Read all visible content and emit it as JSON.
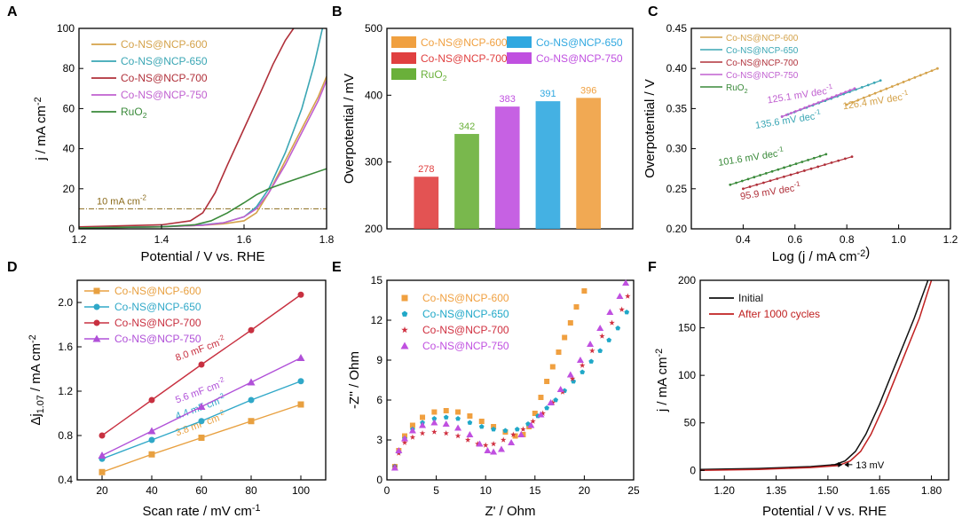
{
  "figure_labels": [
    "A",
    "B",
    "C",
    "D",
    "E",
    "F"
  ],
  "chart_data": [
    {
      "panel": "A",
      "type": "line",
      "xlabel": "Potential / V vs. RHE",
      "ylabel": "j / mA cm-2",
      "xlim": [
        1.2,
        1.8
      ],
      "ylim": [
        0,
        100
      ],
      "xticks": [
        1.2,
        1.4,
        1.6,
        1.8
      ],
      "yticks": [
        0,
        20,
        40,
        60,
        80,
        100
      ],
      "reference_line": {
        "y": 10,
        "label": "10 mA cm-2"
      },
      "series": [
        {
          "name": "Co-NS@NCP-600",
          "color": "#d4a24a",
          "x": [
            1.2,
            1.4,
            1.5,
            1.55,
            1.6,
            1.63,
            1.66,
            1.7,
            1.74,
            1.78,
            1.8
          ],
          "y": [
            0.5,
            1.0,
            1.8,
            2.5,
            4,
            8,
            18,
            34,
            50,
            66,
            76
          ]
        },
        {
          "name": "Co-NS@NCP-650",
          "color": "#3aa6b4",
          "x": [
            1.2,
            1.4,
            1.5,
            1.55,
            1.6,
            1.63,
            1.66,
            1.7,
            1.74,
            1.77,
            1.79
          ],
          "y": [
            0.5,
            1.1,
            2,
            3,
            6,
            11,
            20,
            38,
            60,
            82,
            100
          ]
        },
        {
          "name": "Co-NS@NCP-700",
          "color": "#b0303a",
          "x": [
            1.2,
            1.4,
            1.47,
            1.5,
            1.53,
            1.56,
            1.6,
            1.64,
            1.67,
            1.7,
            1.72
          ],
          "y": [
            1,
            2,
            4,
            8,
            18,
            32,
            50,
            68,
            82,
            94,
            100
          ]
        },
        {
          "name": "Co-NS@NCP-750",
          "color": "#c060d0",
          "x": [
            1.2,
            1.4,
            1.5,
            1.55,
            1.6,
            1.63,
            1.66,
            1.7,
            1.74,
            1.78,
            1.8
          ],
          "y": [
            0.5,
            1.0,
            1.8,
            3,
            6,
            10,
            18,
            32,
            48,
            64,
            74
          ]
        },
        {
          "name": "RuO2",
          "color": "#3a8a3a",
          "x": [
            1.2,
            1.4,
            1.48,
            1.52,
            1.56,
            1.6,
            1.63,
            1.66,
            1.7,
            1.75,
            1.8
          ],
          "y": [
            0.5,
            1,
            2,
            4,
            8,
            13,
            17,
            20,
            23,
            26.5,
            30
          ]
        }
      ]
    },
    {
      "panel": "B",
      "type": "bar",
      "ylabel": "Overpotential / mV",
      "ylim": [
        200,
        500
      ],
      "yticks": [
        200,
        300,
        400,
        500
      ],
      "categories": [
        "Co-NS@NCP-700",
        "RuO2",
        "Co-NS@NCP-750",
        "Co-NS@NCP-650",
        "Co-NS@NCP-600"
      ],
      "values": [
        278,
        342,
        383,
        391,
        396
      ],
      "value_labels": [
        "278",
        "342",
        "383",
        "391",
        "396"
      ],
      "colors": [
        "#e04040",
        "#6ab03a",
        "#c050e0",
        "#30a8e0",
        "#f0a040"
      ],
      "legend": [
        "Co-NS@NCP-600",
        "Co-NS@NCP-650",
        "Co-NS@NCP-700",
        "Co-NS@NCP-750",
        "RuO2"
      ]
    },
    {
      "panel": "C",
      "type": "scatter",
      "xlabel": "Log (j / mA cm-2)",
      "ylabel": "Overpotential / V",
      "xlim": [
        0.2,
        1.2
      ],
      "ylim": [
        0.2,
        0.45
      ],
      "xticks": [
        0.4,
        0.6,
        0.8,
        1.0,
        1.2
      ],
      "yticks": [
        0.2,
        0.25,
        0.3,
        0.35,
        0.4,
        0.45
      ],
      "series": [
        {
          "name": "Co-NS@NCP-600",
          "color": "#d4a24a",
          "x": [
            0.8,
            1.15
          ],
          "y": [
            0.355,
            0.4
          ],
          "slope_label": "126.4 mV dec-1"
        },
        {
          "name": "Co-NS@NCP-650",
          "color": "#3aa6b4",
          "x": [
            0.55,
            0.93
          ],
          "y": [
            0.34,
            0.385
          ],
          "slope_label": "135.6 mV dec-1"
        },
        {
          "name": "Co-NS@NCP-700",
          "color": "#b0303a",
          "x": [
            0.4,
            0.82
          ],
          "y": [
            0.25,
            0.29
          ],
          "slope_label": "95.9 mV dec-1"
        },
        {
          "name": "Co-NS@NCP-750",
          "color": "#c060d0",
          "x": [
            0.55,
            0.83
          ],
          "y": [
            0.34,
            0.375
          ],
          "slope_label": "125.1 mV dec-1"
        },
        {
          "name": "RuO2",
          "color": "#3a8a3a",
          "x": [
            0.35,
            0.72
          ],
          "y": [
            0.255,
            0.293
          ],
          "slope_label": "101.6 mV dec-1"
        }
      ]
    },
    {
      "panel": "D",
      "type": "line",
      "xlabel": "Scan rate / mV cm-1",
      "ylabel": "Δj1.07 / mA cm-2",
      "xlim": [
        10,
        110
      ],
      "ylim": [
        0.4,
        2.2
      ],
      "xticks": [
        20,
        40,
        60,
        80,
        100
      ],
      "yticks": [
        0.4,
        0.8,
        1.2,
        1.6,
        2.0
      ],
      "series": [
        {
          "name": "Co-NS@NCP-600",
          "color": "#e8a040",
          "marker": "square",
          "x": [
            20,
            40,
            60,
            80,
            100
          ],
          "y": [
            0.47,
            0.63,
            0.78,
            0.93,
            1.08
          ],
          "capacitance": "3.8 mF cm-2"
        },
        {
          "name": "Co-NS@NCP-650",
          "color": "#30a8c8",
          "marker": "circle",
          "x": [
            20,
            40,
            60,
            80,
            100
          ],
          "y": [
            0.59,
            0.76,
            0.93,
            1.12,
            1.29
          ],
          "capacitance": "4.4 mF cm-2"
        },
        {
          "name": "Co-NS@NCP-700",
          "color": "#c83040",
          "marker": "circle",
          "x": [
            20,
            40,
            60,
            80,
            100
          ],
          "y": [
            0.8,
            1.12,
            1.44,
            1.75,
            2.07
          ],
          "capacitance": "8.0 mF cm-2"
        },
        {
          "name": "Co-NS@NCP-750",
          "color": "#b050d8",
          "marker": "triangle",
          "x": [
            20,
            40,
            60,
            80,
            100
          ],
          "y": [
            0.62,
            0.84,
            1.06,
            1.28,
            1.5
          ],
          "capacitance": "5.6 mF cm-2"
        }
      ]
    },
    {
      "panel": "E",
      "type": "scatter",
      "xlabel": "Z' / Ohm",
      "ylabel": "-Z'' / Ohm",
      "xlim": [
        0,
        25
      ],
      "ylim": [
        0,
        15
      ],
      "xticks": [
        0,
        5,
        10,
        15,
        20,
        25
      ],
      "yticks": [
        0,
        3,
        6,
        9,
        12,
        15
      ],
      "series": [
        {
          "name": "Co-NS@NCP-600",
          "color": "#f0a040",
          "marker": "square",
          "x": [
            0.8,
            1.2,
            1.8,
            2.6,
            3.6,
            4.8,
            6,
            7.2,
            8.4,
            9.6,
            10.8,
            12,
            13,
            13.8,
            14.4,
            15,
            15.6,
            16.2,
            16.8,
            17.4,
            18,
            18.6,
            19.2,
            20
          ],
          "y": [
            1,
            2.2,
            3.3,
            4.1,
            4.7,
            5.1,
            5.2,
            5.1,
            4.8,
            4.4,
            4,
            3.6,
            3.3,
            3.4,
            4.0,
            5.0,
            6.2,
            7.4,
            8.5,
            9.6,
            10.7,
            11.8,
            13,
            14.2
          ]
        },
        {
          "name": "Co-NS@NCP-650",
          "color": "#20a8c8",
          "marker": "pentagon",
          "x": [
            0.8,
            1.2,
            1.8,
            2.6,
            3.6,
            4.8,
            6,
            7.2,
            8.4,
            9.6,
            10.8,
            12,
            13.2,
            14.3,
            15.3,
            16.2,
            17.1,
            18,
            18.9,
            19.8,
            20.7,
            21.6,
            22.5,
            23.4,
            24.3
          ],
          "y": [
            1,
            2.1,
            3.1,
            3.8,
            4.3,
            4.6,
            4.7,
            4.6,
            4.3,
            4.0,
            3.8,
            3.7,
            3.8,
            4.2,
            4.8,
            5.4,
            6,
            6.7,
            7.4,
            8.1,
            8.9,
            9.7,
            10.5,
            11.4,
            12.6
          ]
        },
        {
          "name": "Co-NS@NCP-700",
          "color": "#d03040",
          "marker": "star",
          "x": [
            0.8,
            1.2,
            1.8,
            2.6,
            3.6,
            4.8,
            6,
            7.2,
            8.2,
            9.2,
            10,
            10.8,
            11.8,
            12.8,
            13.8,
            14.8,
            15.8,
            16.8,
            17.8,
            18.8,
            19.8,
            20.8,
            21.8,
            22.8,
            23.8,
            24.4
          ],
          "y": [
            1,
            2,
            2.8,
            3.2,
            3.5,
            3.6,
            3.5,
            3.3,
            3.0,
            2.7,
            2.6,
            2.7,
            3.0,
            3.4,
            3.8,
            4.4,
            5.0,
            5.8,
            6.6,
            7.6,
            8.6,
            9.7,
            10.8,
            11.8,
            12.8,
            13.8
          ]
        },
        {
          "name": "Co-NS@NCP-750",
          "color": "#c050e0",
          "marker": "triangle",
          "x": [
            0.8,
            1.2,
            1.8,
            2.6,
            3.6,
            4.8,
            6,
            7.2,
            8.4,
            9.4,
            10.2,
            10.8,
            11.6,
            12.6,
            13.6,
            14.6,
            15.6,
            16.6,
            17.6,
            18.6,
            19.6,
            20.6,
            21.6,
            22.6,
            23.6,
            24.2
          ],
          "y": [
            0.9,
            2.2,
            3.1,
            3.7,
            4.1,
            4.3,
            4.2,
            3.9,
            3.4,
            2.7,
            2.2,
            2.1,
            2.3,
            2.8,
            3.4,
            4.1,
            4.9,
            5.8,
            6.8,
            7.9,
            9.0,
            10.2,
            11.4,
            12.6,
            13.8,
            14.8
          ]
        }
      ]
    },
    {
      "panel": "F",
      "type": "line",
      "xlabel": "Potential / V vs. RHE",
      "ylabel": "j / mA cm-2",
      "xlim": [
        1.13,
        1.85
      ],
      "ylim": [
        -10,
        200
      ],
      "xticks": [
        1.2,
        1.35,
        1.5,
        1.65,
        1.8
      ],
      "xtick_labels": [
        "1.20",
        "1.35",
        "1.50",
        "1.65",
        "1.80"
      ],
      "yticks": [
        0,
        50,
        100,
        150,
        200
      ],
      "annotation": "13 mV",
      "series": [
        {
          "name": "Initial",
          "color": "#111111",
          "x": [
            1.13,
            1.3,
            1.45,
            1.52,
            1.55,
            1.58,
            1.61,
            1.65,
            1.7,
            1.75,
            1.79
          ],
          "y": [
            1,
            2,
            4,
            6,
            10,
            20,
            38,
            70,
            115,
            160,
            200
          ]
        },
        {
          "name": "After 1000 cycles",
          "color": "#c02020",
          "x": [
            1.13,
            1.3,
            1.45,
            1.53,
            1.565,
            1.595,
            1.625,
            1.665,
            1.715,
            1.765,
            1.8
          ],
          "y": [
            0,
            1,
            3,
            5,
            10,
            20,
            38,
            70,
            115,
            160,
            200
          ]
        }
      ]
    }
  ]
}
